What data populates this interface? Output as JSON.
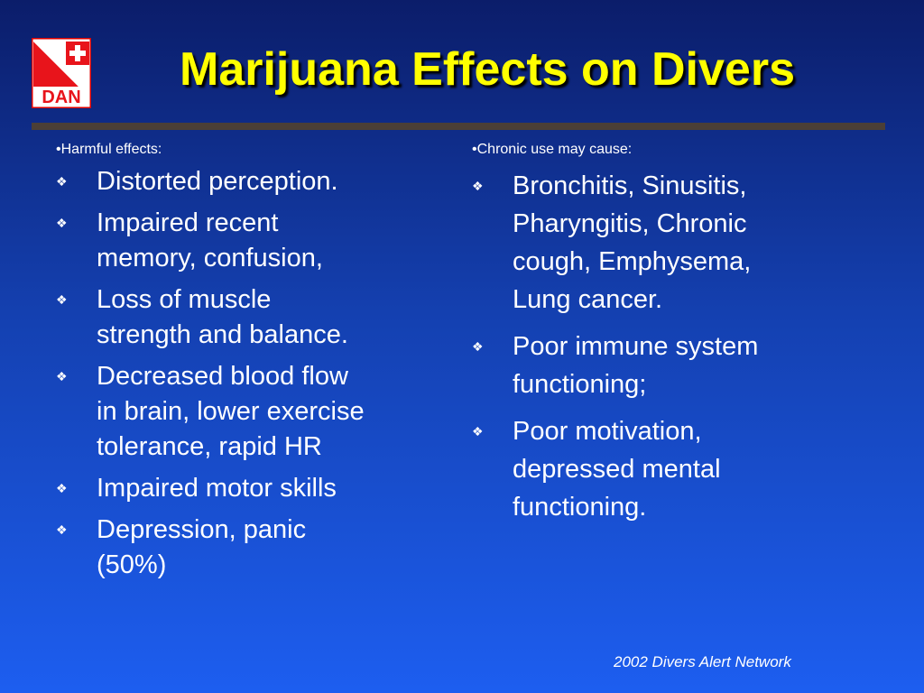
{
  "logo": {
    "text": "DAN"
  },
  "header": {
    "title": "Marijuana Effects on Divers"
  },
  "columns": [
    {
      "heading": "Harmful effects:",
      "items": [
        [
          "Distorted perception."
        ],
        [
          "Impaired recent",
          "memory, confusion,"
        ],
        [
          "Loss of muscle",
          "strength and balance."
        ],
        [
          "Decreased blood flow",
          "in brain, lower exercise",
          "tolerance, rapid HR"
        ],
        [
          "Impaired motor skills"
        ],
        [
          "Depression, panic",
          "(50%)"
        ]
      ]
    },
    {
      "heading": "Chronic use may cause:",
      "items": [
        [
          "Bronchitis, Sinusitis,",
          "Pharyngitis, Chronic",
          "cough, Emphysema,",
          "Lung cancer."
        ],
        [
          "Poor immune system",
          "functioning;"
        ],
        [
          "Poor motivation,",
          "depressed mental",
          "functioning."
        ]
      ]
    }
  ],
  "footer": {
    "text": "2002 Divers Alert Network"
  }
}
